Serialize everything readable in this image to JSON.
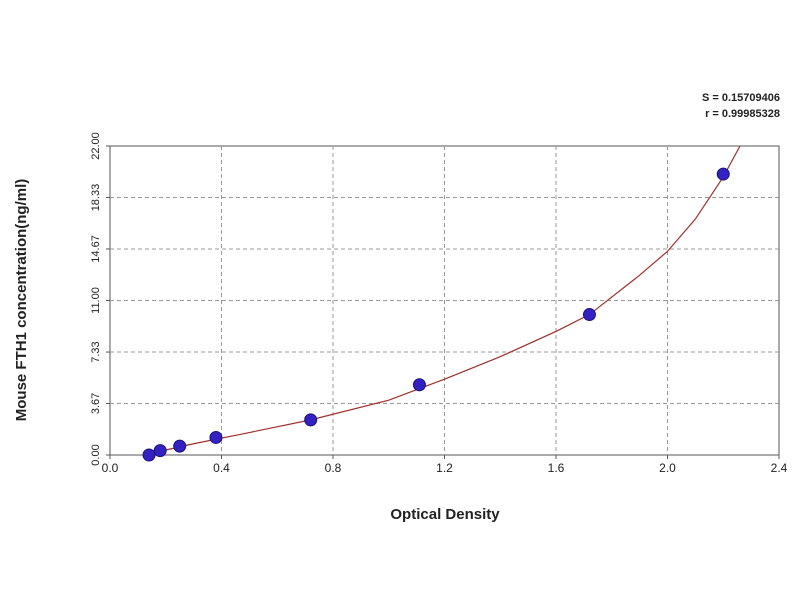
{
  "chart_data": {
    "type": "scatter",
    "xlabel": "Optical Density",
    "ylabel": "Mouse FTH1 concentration(ng/ml)",
    "annotations": [
      "S = 0.15709406",
      "r = 0.99985328"
    ],
    "xlim": [
      0,
      2.4
    ],
    "ylim": [
      0,
      22
    ],
    "xticks": [
      {
        "value": 0,
        "label": "0.0"
      },
      0.4,
      0.8,
      1.2,
      1.6,
      {
        "value": 2,
        "label": "2.0"
      },
      2.4
    ],
    "yticks": [
      {
        "value": 0,
        "label": "0.00"
      },
      3.67,
      7.33,
      {
        "value": 11,
        "label": "11.00"
      },
      14.67,
      18.33,
      {
        "value": 22,
        "label": "22.00"
      }
    ],
    "grid": true,
    "series": [
      {
        "type": "line",
        "color": "#a0302a",
        "x": [
          0.12,
          0.3,
          0.5,
          0.72,
          1.0,
          1.2,
          1.4,
          1.6,
          1.72,
          1.9,
          2.0,
          2.1,
          2.2,
          2.26
        ],
        "values": [
          0,
          0.8,
          1.6,
          2.5,
          3.9,
          5.4,
          7.0,
          8.8,
          10.0,
          12.8,
          14.5,
          16.8,
          19.8,
          22
        ]
      },
      {
        "type": "scatter",
        "color": "#3322c0",
        "x": [
          0.14,
          0.18,
          0.25,
          0.38,
          0.72,
          1.11,
          1.72,
          2.2
        ],
        "values": [
          0,
          0.31,
          0.63,
          1.25,
          2.5,
          5,
          10,
          20
        ]
      }
    ]
  }
}
